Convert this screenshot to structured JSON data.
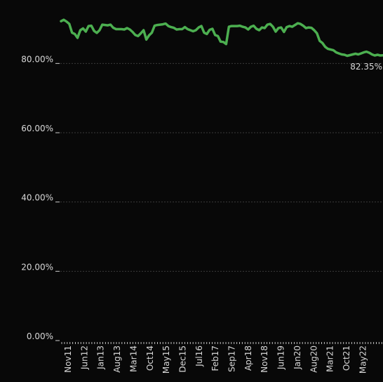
{
  "chart_data": {
    "type": "line",
    "title": "",
    "xlabel": "",
    "ylabel": "",
    "ylim": [
      0,
      100
    ],
    "y_ticks": [
      "0.00%",
      "20.00%",
      "40.00%",
      "60.00%",
      "80.00%"
    ],
    "x_ticks": [
      "Nov11",
      "Jun12",
      "Jan13",
      "Aug13",
      "Mar14",
      "Oct14",
      "May15",
      "Dec15",
      "Jul16",
      "Feb17",
      "Sep17",
      "Apr18",
      "Nov18",
      "Jun19",
      "Jan20",
      "Aug20",
      "Mar21",
      "Oct21",
      "May22"
    ],
    "grid": true,
    "line_color": "#4caf50",
    "last_value_label": "82.35%",
    "series": [
      {
        "values": [
          92.2,
          92.6,
          92.1,
          91.4,
          88.9,
          88.5,
          87.4,
          89.6,
          90.1,
          89.2,
          90.8,
          90.9,
          89.4,
          88.8,
          89.6,
          91.2,
          91.1,
          91.0,
          91.2,
          90.3,
          89.9,
          89.9,
          89.9,
          89.8,
          90.2,
          89.8,
          89.1,
          88.2,
          87.9,
          88.7,
          89.6,
          86.9,
          88.1,
          88.9,
          90.9,
          91.1,
          91.2,
          91.3,
          91.5,
          90.8,
          90.5,
          90.3,
          89.8,
          89.9,
          89.9,
          90.5,
          89.9,
          89.6,
          89.3,
          89.6,
          90.4,
          90.8,
          88.9,
          88.5,
          89.7,
          90.0,
          88.2,
          87.9,
          86.3,
          86.2,
          85.6,
          90.6,
          90.8,
          90.8,
          90.8,
          90.9,
          90.6,
          90.4,
          89.8,
          90.6,
          90.9,
          90.0,
          89.6,
          90.4,
          90.2,
          91.2,
          91.4,
          90.6,
          89.2,
          90.2,
          90.4,
          89.1,
          90.5,
          90.8,
          90.6,
          91.1,
          91.6,
          91.4,
          90.9,
          90.2,
          90.4,
          90.3,
          89.6,
          88.7,
          86.5,
          85.9,
          84.8,
          84.2,
          84.0,
          83.8,
          83.2,
          82.9,
          82.6,
          82.5,
          82.2,
          82.4,
          82.6,
          82.8,
          82.6,
          82.9,
          83.2,
          83.4,
          83.1,
          82.6,
          82.3,
          82.5,
          82.3,
          82.35
        ]
      }
    ]
  }
}
